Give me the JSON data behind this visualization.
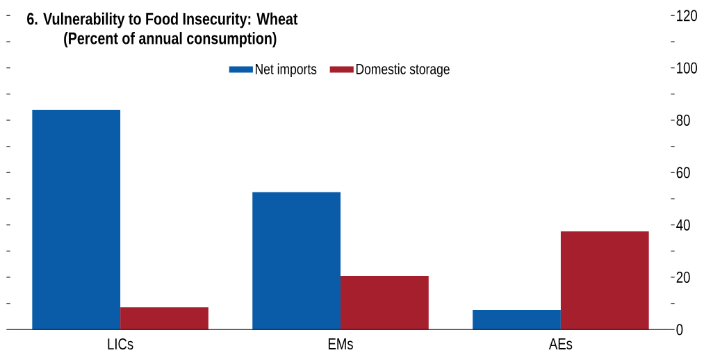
{
  "chart_data": {
    "type": "bar",
    "title": "6. Vulnerability to Food Insecurity: Wheat",
    "subtitle": "(Percent of annual consumption)",
    "categories": [
      "LICs",
      "EMs",
      "AEs"
    ],
    "series": [
      {
        "name": "Net imports",
        "color": "#0b5ca8",
        "values": [
          84,
          52.5,
          7.5
        ]
      },
      {
        "name": "Domestic storage",
        "color": "#a51f2d",
        "values": [
          8.5,
          20.5,
          37.5
        ]
      }
    ],
    "ylim": [
      0,
      120
    ],
    "yticks": [
      0,
      {
        "value": 10,
        "label": null
      },
      20,
      {
        "value": 30,
        "label": null
      },
      40,
      {
        "value": 50,
        "label": null
      },
      60,
      {
        "value": 70,
        "label": null
      },
      80,
      {
        "value": 90,
        "label": null
      },
      100,
      {
        "value": 110,
        "label": null
      },
      120
    ],
    "legend": "top",
    "grid": false
  }
}
